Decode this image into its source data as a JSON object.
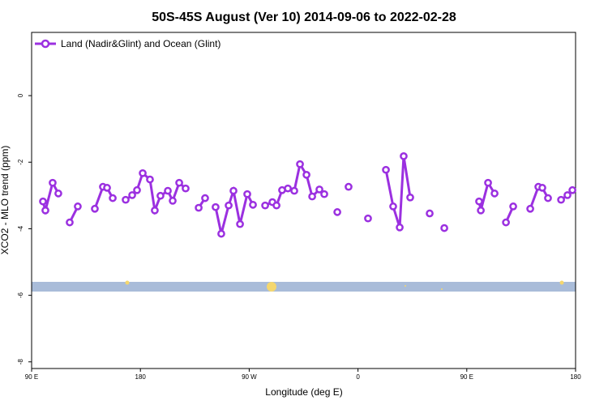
{
  "chart_data": {
    "type": "line",
    "title": "50S-45S August (Ver 10)   2014-09-06 to 2022-02-28",
    "x_label": "Longitude (deg E)",
    "y_label": "XCO2 - MLO trend (ppm)",
    "xlim": [
      90,
      540
    ],
    "ylim": [
      -8.2,
      1.9
    ],
    "xticks": [
      {
        "value": 90,
        "label": "90 E"
      },
      {
        "value": 180,
        "label": "180"
      },
      {
        "value": 270,
        "label": "90 W"
      },
      {
        "value": 360,
        "label": "0"
      },
      {
        "value": 450,
        "label": "90 E"
      },
      {
        "value": 540,
        "label": "180"
      }
    ],
    "yticks": [
      0,
      -2,
      -4,
      -6,
      -8
    ],
    "legend": "upper left",
    "x": [
      99.4,
      101.4,
      107.4,
      112.1,
      null,
      121.5,
      128.2,
      null,
      142.3,
      149.0,
      152.4,
      157.1,
      null,
      167.8,
      173.2,
      177.2,
      181.9,
      187.9,
      191.9,
      196.6,
      202.7,
      206.7,
      212.1,
      217.4,
      null,
      228.2,
      233.5,
      null,
      242.2,
      246.9,
      253.0,
      257.0,
      262.4,
      268.4,
      273.1,
      null,
      283.2,
      289.2,
      292.6,
      297.2,
      302.0,
      307.3,
      312.0,
      317.4,
      322.1,
      328.1,
      332.1,
      null,
      342.9,
      null,
      352.2,
      null,
      368.3,
      null,
      383.1,
      389.1,
      394.5,
      397.8,
      403.2,
      null,
      419.3,
      null,
      431.4,
      null,
      460.2,
      461.6,
      467.6,
      473.0,
      null,
      482.4,
      488.4,
      null,
      502.5,
      509.2,
      512.5,
      517.2,
      null,
      528.0,
      533.3,
      537.4
    ],
    "series": [
      {
        "name": "Land (Nadir&Glint) and Ocean (Glint)",
        "color": "#9b30e0",
        "values": [
          -3.18,
          -3.45,
          -2.62,
          -2.94,
          null,
          -3.81,
          -3.33,
          null,
          -3.4,
          -2.74,
          -2.77,
          -3.08,
          null,
          -3.13,
          -2.99,
          -2.84,
          -2.33,
          -2.52,
          -3.45,
          -3.01,
          -2.86,
          -3.16,
          -2.62,
          -2.79,
          null,
          -3.37,
          -3.08,
          null,
          -3.35,
          -4.15,
          -3.3,
          -2.86,
          -3.86,
          -2.96,
          -3.28,
          null,
          -3.3,
          -3.2,
          -3.3,
          -2.84,
          -2.79,
          -2.86,
          -2.06,
          -2.38,
          -3.03,
          -2.82,
          -2.96,
          null,
          -3.5,
          null,
          -2.74,
          null,
          -3.69,
          null,
          -2.23,
          -3.33,
          -3.96,
          -1.82,
          -3.06,
          null,
          -3.54,
          null,
          -3.98,
          null,
          -3.18,
          -3.45,
          -2.62,
          -2.94,
          null,
          -3.81,
          -3.33,
          null,
          -3.4,
          -2.74,
          -2.77,
          -3.08,
          null,
          -3.13,
          -2.99,
          -2.84
        ]
      }
    ]
  }
}
